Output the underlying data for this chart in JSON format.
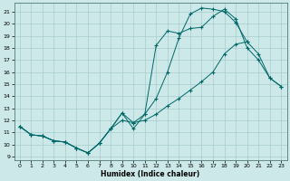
{
  "xlabel": "Humidex (Indice chaleur)",
  "background_color": "#cce8e8",
  "grid_color": "#a8cccc",
  "line_color": "#006868",
  "xlim": [
    -0.5,
    23.5
  ],
  "ylim": [
    8.7,
    21.7
  ],
  "yticks": [
    9,
    10,
    11,
    12,
    13,
    14,
    15,
    16,
    17,
    18,
    19,
    20,
    21
  ],
  "xticks": [
    0,
    1,
    2,
    3,
    4,
    5,
    6,
    7,
    8,
    9,
    10,
    11,
    12,
    13,
    14,
    15,
    16,
    17,
    18,
    19,
    20,
    21,
    22,
    23
  ],
  "line1_x": [
    0,
    1,
    2,
    3,
    4,
    5,
    6,
    7,
    8,
    9,
    10,
    11,
    12,
    13,
    14,
    15,
    16,
    17,
    18,
    19,
    20
  ],
  "line1_y": [
    11.5,
    10.8,
    10.7,
    10.3,
    10.2,
    9.7,
    9.3,
    10.1,
    11.3,
    12.6,
    11.8,
    12.5,
    13.8,
    16.0,
    18.8,
    20.8,
    21.3,
    21.2,
    21.0,
    20.1,
    18.5
  ],
  "line2_x": [
    0,
    1,
    2,
    3,
    4,
    5,
    6,
    7,
    8,
    9,
    10,
    11,
    12,
    13,
    14,
    15,
    16,
    17,
    18,
    19,
    20,
    21,
    22,
    23
  ],
  "line2_y": [
    11.5,
    10.8,
    10.7,
    10.3,
    10.2,
    9.7,
    9.3,
    10.1,
    11.3,
    12.6,
    11.3,
    12.5,
    18.2,
    19.4,
    19.2,
    19.6,
    19.7,
    20.6,
    21.2,
    20.4,
    18.0,
    17.0,
    15.5,
    14.8
  ],
  "line3_x": [
    0,
    1,
    2,
    3,
    4,
    5,
    6,
    7,
    8,
    9,
    10,
    11,
    12,
    13,
    14,
    15,
    16,
    17,
    18,
    19,
    20,
    21,
    22,
    23
  ],
  "line3_y": [
    11.5,
    10.8,
    10.7,
    10.3,
    10.2,
    9.7,
    9.3,
    10.1,
    11.3,
    12.0,
    11.8,
    12.0,
    12.5,
    13.2,
    13.8,
    14.5,
    15.2,
    16.0,
    17.5,
    18.3,
    18.5,
    17.5,
    15.5,
    14.8
  ]
}
